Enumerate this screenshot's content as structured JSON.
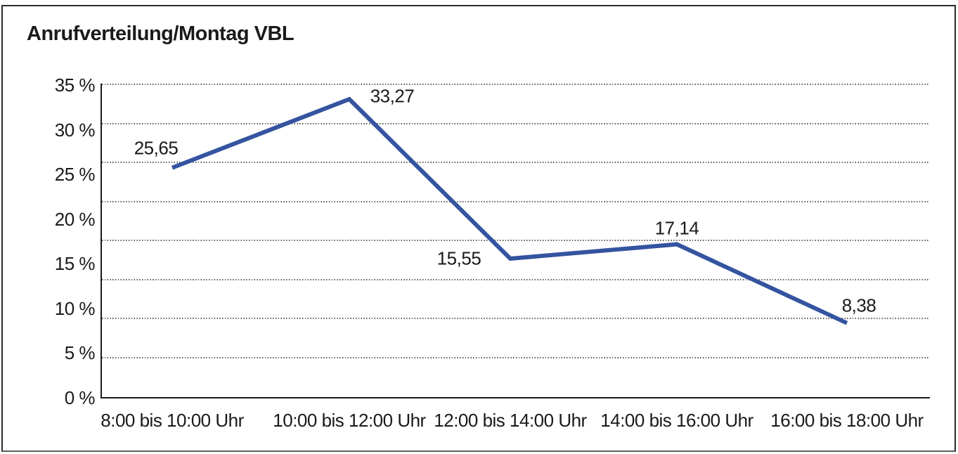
{
  "title": "Anrufverteilung/Montag VBL",
  "colors": {
    "line": "#3454A0",
    "axis": "#1a1a1a",
    "grid_dots": "#575757",
    "text": "#1a1a1a",
    "frame_border": "#2b2b2b",
    "background": "#ffffff"
  },
  "chart_data": {
    "type": "line",
    "title": "Anrufverteilung/Montag VBL",
    "categories": [
      "8:00 bis 10:00 Uhr",
      "10:00 bis 12:00 Uhr",
      "12:00 bis 14:00 Uhr",
      "14:00 bis 16:00 Uhr",
      "16:00 bis 18:00 Uhr"
    ],
    "values": [
      25.65,
      33.27,
      15.55,
      17.14,
      8.38
    ],
    "point_labels": [
      "25,65",
      "33,27",
      "15,55",
      "17,14",
      "8,38"
    ],
    "y_tick_labels": [
      "35 %",
      "30 %",
      "25 %",
      "20 %",
      "15 %",
      "10 %",
      "5 %",
      "0 %"
    ],
    "y_ticks": [
      35,
      30,
      25,
      20,
      15,
      10,
      5,
      0
    ],
    "ylim": [
      0,
      35
    ],
    "ylabel": "",
    "xlabel": "",
    "unit": "%",
    "grid": "horizontal-dotted",
    "legend": "none",
    "line_color": "#3454A0"
  }
}
